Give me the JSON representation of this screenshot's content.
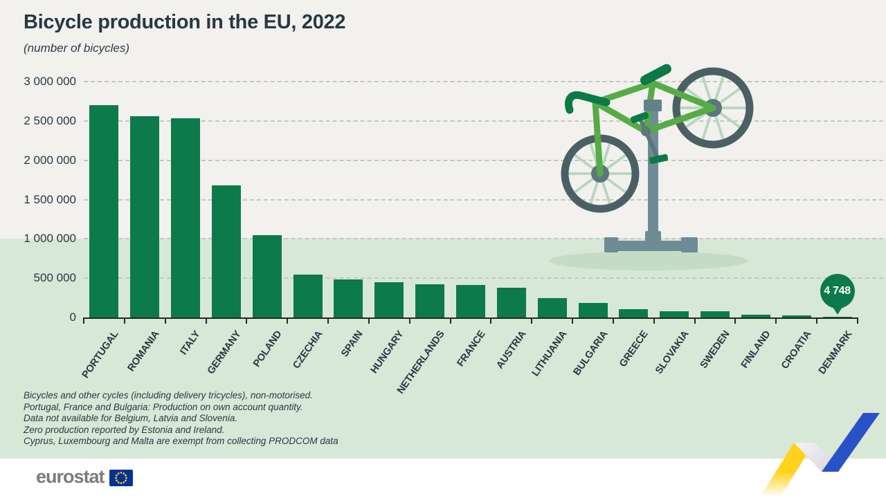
{
  "title": "Bicycle production in the EU, 2022",
  "subtitle": "(number of bicycles)",
  "chart_data": {
    "type": "bar",
    "title": "Bicycle production in the EU, 2022",
    "unit": "number of bicycles",
    "categories": [
      "PORTUGAL",
      "ROMANIA",
      "ITALY",
      "GERMANY",
      "POLAND",
      "CZECHIA",
      "SPAIN",
      "HUNGARY",
      "NETHERLANDS",
      "FRANCE",
      "AUSTRIA",
      "LITHUANIA",
      "BULGARIA",
      "GREECE",
      "SLOVAKIA",
      "SWEDEN",
      "FINLAND",
      "CROATIA",
      "DENMARK"
    ],
    "values": [
      2700000,
      2560000,
      2530000,
      1680000,
      1050000,
      545000,
      480000,
      445000,
      425000,
      410000,
      380000,
      250000,
      185000,
      105000,
      78000,
      75000,
      38000,
      25000,
      4748
    ],
    "ylim": [
      0,
      3000000
    ],
    "yticks": [
      {
        "label": "3 000 000",
        "value": 3000000
      },
      {
        "label": "2 500 000",
        "value": 2500000
      },
      {
        "label": "2 000 000",
        "value": 2000000
      },
      {
        "label": "1 500 000",
        "value": 1500000
      },
      {
        "label": "1 000 000",
        "value": 1000000
      },
      {
        "label": "500 000",
        "value": 500000
      },
      {
        "label": "0",
        "value": 0
      }
    ],
    "grid": "horizontal-dashed",
    "legend": "none",
    "xlabel": "",
    "ylabel": "",
    "bar_color": "#0d7a4c",
    "annotation": {
      "category": "DENMARK",
      "label": "4 748",
      "value": 4748
    }
  },
  "footnotes": [
    "Bicycles and other cycles (including delivery tricycles), non-motorised.",
    "Portugal, France and Bulgaria: Production on own account quantity.",
    "Data not available for Belgium, Latvia and Slovenia.",
    "Zero production reported by Estonia and Ireland.",
    "Cyprus, Luxembourg and Malta are exempt from collecting PRODCOM data"
  ],
  "logo": {
    "text": "eurostat"
  },
  "colors": {
    "background_top": "#f2f1ee",
    "background_band": "#d8e8d6",
    "footer": "#ffffff",
    "bar": "#0d7a4c",
    "text": "#273845",
    "badge": "#0d7a4c",
    "ribbon_yellow": "#ffd21c",
    "ribbon_blue": "#2951c8",
    "flag_blue": "#003399",
    "flag_stars": "#ffcc00"
  }
}
